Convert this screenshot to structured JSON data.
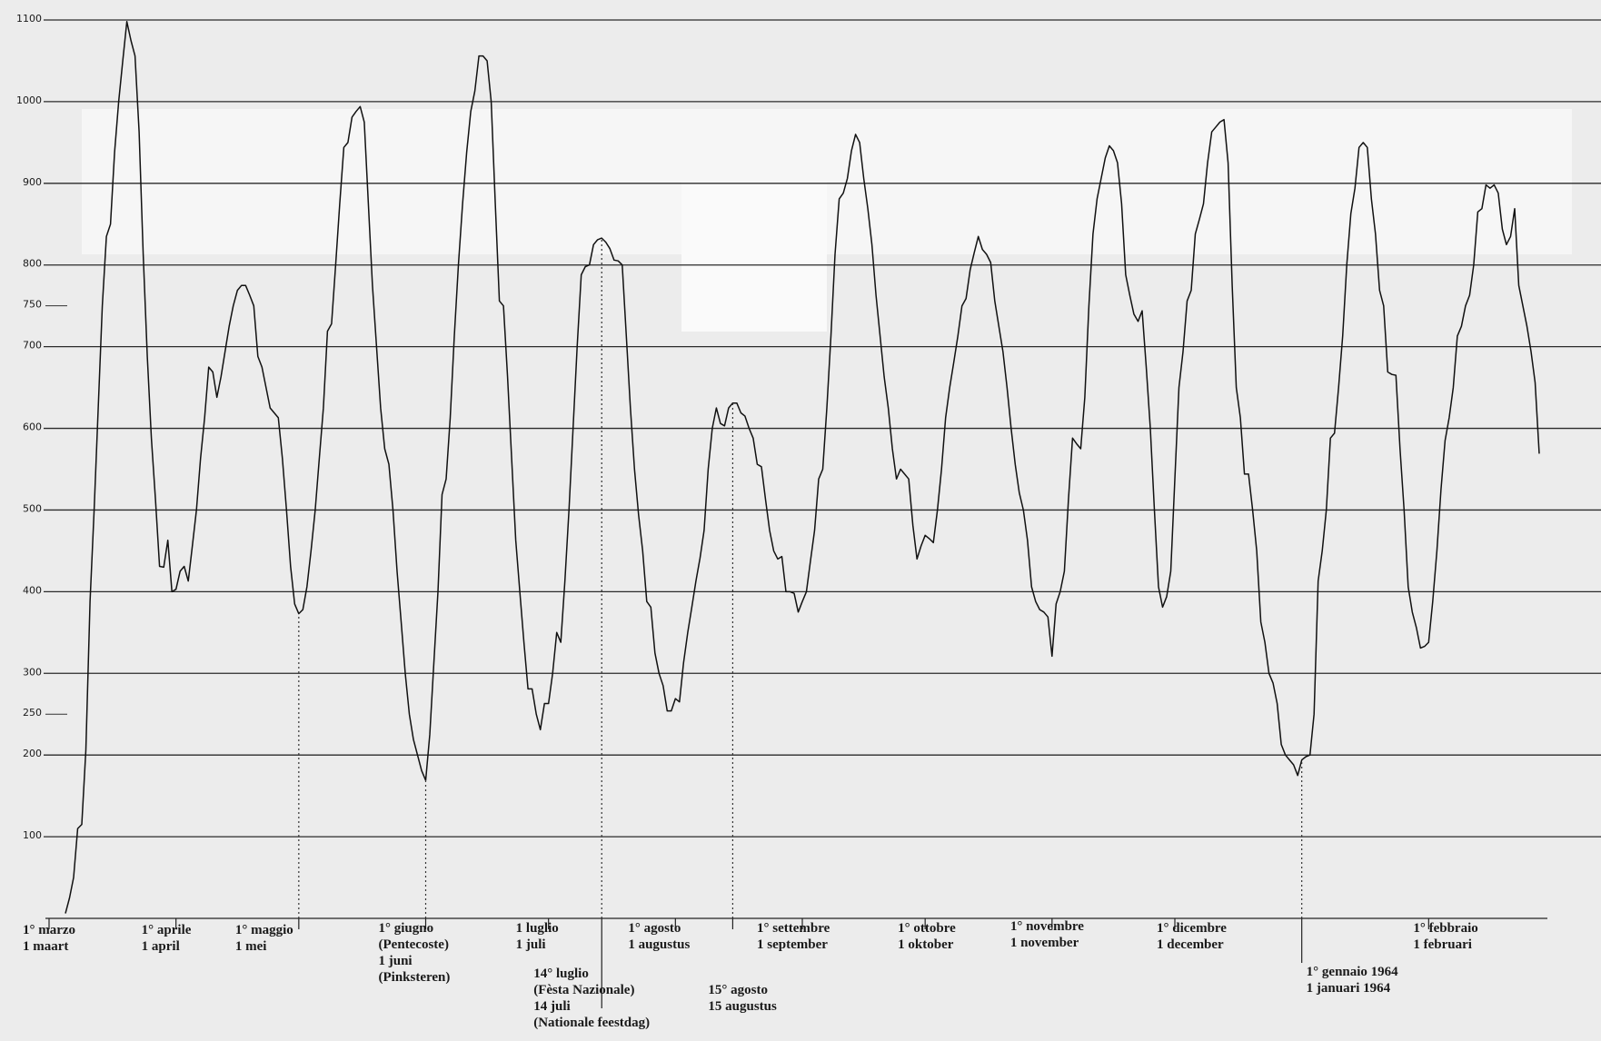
{
  "chart_data": {
    "type": "line",
    "color": "#111111",
    "grid": true,
    "ylim": [
      0,
      1100
    ],
    "yticks": [
      100,
      200,
      300,
      400,
      500,
      600,
      700,
      800,
      900,
      1000,
      1100
    ],
    "yticks_minor": [
      250,
      750
    ],
    "xlim": [
      0,
      366
    ],
    "xticks": [
      {
        "value": 0,
        "label": [
          "1° marzo",
          "1 maart"
        ]
      },
      {
        "value": 31,
        "label": [
          "1° aprile",
          "1 april"
        ]
      },
      {
        "value": 61,
        "label": [
          "1° maggio",
          "1 mei"
        ],
        "dropline": true
      },
      {
        "value": 92,
        "label": [
          "1° giugno",
          "(Pentecoste)",
          "1 juni",
          "(Pinksteren)"
        ],
        "dropline": true
      },
      {
        "value": 122,
        "label": [
          "1 luglio",
          "1 juli"
        ]
      },
      {
        "value": 135,
        "label": [
          "14° luglio",
          "(Fèsta Nazionale)",
          "14 juli",
          "(Nationale feestdag)"
        ],
        "dropline": true
      },
      {
        "value": 153,
        "label": [
          "1° agosto",
          "1 augustus"
        ]
      },
      {
        "value": 167,
        "label": [
          "15° agosto",
          "15 augustus"
        ],
        "dropline": true
      },
      {
        "value": 184,
        "label": [
          "1° settembre",
          "1 september"
        ]
      },
      {
        "value": 214,
        "label": [
          "1° ottobre",
          "1 oktober"
        ]
      },
      {
        "value": 245,
        "label": [
          "1° novembre",
          "1 november"
        ]
      },
      {
        "value": 275,
        "label": [
          "1° dicembre",
          "1 december"
        ]
      },
      {
        "value": 306,
        "label": [
          "1° gennaio 1964",
          "1 januari 1964"
        ],
        "dropline": true
      },
      {
        "value": 337,
        "label": [
          "1° febbraio",
          "1 februari"
        ]
      }
    ],
    "x": [
      4,
      5,
      6,
      7,
      8,
      9,
      10,
      11,
      12,
      13,
      14,
      15,
      16,
      17,
      18,
      19,
      20,
      21,
      22,
      23,
      24,
      25,
      26,
      27,
      28,
      29,
      30,
      31,
      32,
      33,
      34,
      35,
      36,
      37,
      38,
      39,
      40,
      41,
      42,
      43,
      44,
      45,
      46,
      47,
      48,
      49,
      50,
      51,
      52,
      53,
      54,
      55,
      56,
      57,
      58,
      59,
      60,
      61,
      62,
      63,
      64,
      65,
      66,
      67,
      68,
      69,
      70,
      71,
      72,
      73,
      74,
      75,
      76,
      77,
      78,
      79,
      80,
      81,
      82,
      83,
      84,
      85,
      86,
      87,
      88,
      89,
      90,
      91,
      92,
      93,
      94,
      95,
      96,
      97,
      98,
      99,
      100,
      101,
      102,
      103,
      104,
      105,
      106,
      107,
      108,
      109,
      110,
      111,
      112,
      113,
      114,
      115,
      116,
      117,
      118,
      119,
      120,
      121,
      122,
      123,
      124,
      125,
      126,
      127,
      128,
      129,
      130,
      131,
      132,
      133,
      134,
      135,
      136,
      137,
      138,
      139,
      140,
      141,
      142,
      143,
      144,
      145,
      146,
      147,
      148,
      149,
      150,
      151,
      152,
      153,
      154,
      155,
      156,
      157,
      158,
      159,
      160,
      161,
      162,
      163,
      164,
      165,
      166,
      167,
      168,
      169,
      170,
      171,
      172,
      173,
      174,
      175,
      176,
      177,
      178,
      179,
      180,
      181,
      182,
      183,
      184,
      185,
      186,
      187,
      188,
      189,
      190,
      191,
      192,
      193,
      194,
      195,
      196,
      197,
      198,
      199,
      200,
      201,
      202,
      203,
      204,
      205,
      206,
      207,
      208,
      209,
      210,
      211,
      212,
      213,
      214,
      215,
      216,
      217,
      218,
      219,
      220,
      221,
      222,
      223,
      224,
      225,
      226,
      227,
      228,
      229,
      230,
      231,
      232,
      233,
      234,
      235,
      236,
      237,
      238,
      239,
      240,
      241,
      242,
      243,
      244,
      245,
      246,
      247,
      248,
      249,
      250,
      251,
      252,
      253,
      254,
      255,
      256,
      257,
      258,
      259,
      260,
      261,
      262,
      263,
      264,
      265,
      266,
      267,
      268,
      269,
      270,
      271,
      272,
      273,
      274,
      275,
      276,
      277,
      278,
      279,
      280,
      281,
      282,
      283,
      284,
      285,
      286,
      287,
      288,
      289,
      290,
      291,
      292,
      293,
      294,
      295,
      296,
      297,
      298,
      299,
      300,
      301,
      302,
      303,
      304,
      305,
      306,
      307,
      308,
      309,
      310,
      311,
      312,
      313,
      314,
      315,
      316,
      317,
      318,
      319,
      320,
      321,
      322,
      323,
      324,
      325,
      326,
      327,
      328,
      329,
      330,
      331,
      332,
      333,
      334,
      335,
      336,
      337,
      338,
      339,
      340,
      341,
      342,
      343,
      344,
      345,
      346,
      347,
      348,
      349,
      350,
      351,
      352,
      353,
      354,
      355,
      356,
      357,
      358,
      359,
      360,
      361,
      362,
      363,
      364
    ],
    "values": [
      6,
      25,
      50,
      110,
      115,
      206,
      388,
      500,
      625,
      750,
      835,
      850,
      938,
      1000,
      1050,
      1098,
      1075,
      1056,
      963,
      813,
      688,
      588,
      513,
      431,
      430,
      463,
      400,
      403,
      425,
      431,
      413,
      456,
      500,
      563,
      613,
      675,
      669,
      638,
      663,
      694,
      725,
      750,
      769,
      775,
      775,
      763,
      750,
      688,
      675,
      650,
      625,
      619,
      613,
      563,
      500,
      431,
      385,
      373,
      378,
      406,
      450,
      500,
      563,
      625,
      719,
      728,
      800,
      875,
      944,
      950,
      981,
      988,
      994,
      975,
      875,
      775,
      700,
      625,
      575,
      556,
      500,
      425,
      363,
      300,
      250,
      219,
      200,
      181,
      169,
      225,
      313,
      400,
      519,
      538,
      613,
      713,
      800,
      875,
      938,
      988,
      1013,
      1056,
      1056,
      1050,
      1000,
      875,
      756,
      750,
      663,
      563,
      463,
      400,
      338,
      281,
      281,
      250,
      231,
      263,
      263,
      300,
      350,
      338,
      413,
      500,
      600,
      700,
      788,
      798,
      800,
      825,
      831,
      833,
      828,
      820,
      806,
      805,
      800,
      713,
      625,
      550,
      494,
      450,
      388,
      381,
      325,
      300,
      285,
      254,
      254,
      269,
      265,
      313,
      350,
      381,
      413,
      441,
      475,
      550,
      600,
      625,
      606,
      603,
      625,
      631,
      631,
      619,
      615,
      600,
      588,
      556,
      553,
      513,
      475,
      450,
      440,
      443,
      400,
      400,
      398,
      375,
      388,
      400,
      438,
      475,
      538,
      550,
      625,
      713,
      813,
      881,
      888,
      906,
      940,
      960,
      950,
      906,
      869,
      825,
      763,
      713,
      663,
      625,
      575,
      538,
      550,
      544,
      538,
      481,
      440,
      456,
      469,
      465,
      460,
      500,
      550,
      613,
      650,
      681,
      713,
      750,
      759,
      794,
      815,
      835,
      819,
      813,
      803,
      756,
      725,
      694,
      650,
      600,
      556,
      521,
      500,
      463,
      406,
      388,
      378,
      375,
      369,
      321,
      385,
      400,
      425,
      513,
      588,
      581,
      575,
      638,
      750,
      838,
      881,
      906,
      931,
      946,
      940,
      925,
      875,
      788,
      763,
      740,
      731,
      744,
      675,
      600,
      500,
      406,
      381,
      394,
      425,
      538,
      650,
      694,
      756,
      769,
      838,
      856,
      875,
      925,
      963,
      969,
      975,
      978,
      925,
      775,
      650,
      613,
      544,
      544,
      500,
      450,
      363,
      338,
      300,
      288,
      263,
      213,
      200,
      194,
      188,
      175,
      194,
      198,
      200,
      250,
      413,
      450,
      500,
      588,
      594,
      650,
      713,
      800,
      863,
      894,
      944,
      950,
      944,
      881,
      838,
      769,
      750,
      669,
      666,
      665,
      575,
      500,
      406,
      375,
      356,
      331,
      333,
      338,
      388,
      450,
      525,
      585,
      613,
      650,
      713,
      725,
      750,
      763,
      800,
      865,
      869,
      898,
      894,
      898,
      888,
      844,
      825,
      835,
      869,
      775,
      750,
      725,
      694,
      656,
      569
    ]
  }
}
